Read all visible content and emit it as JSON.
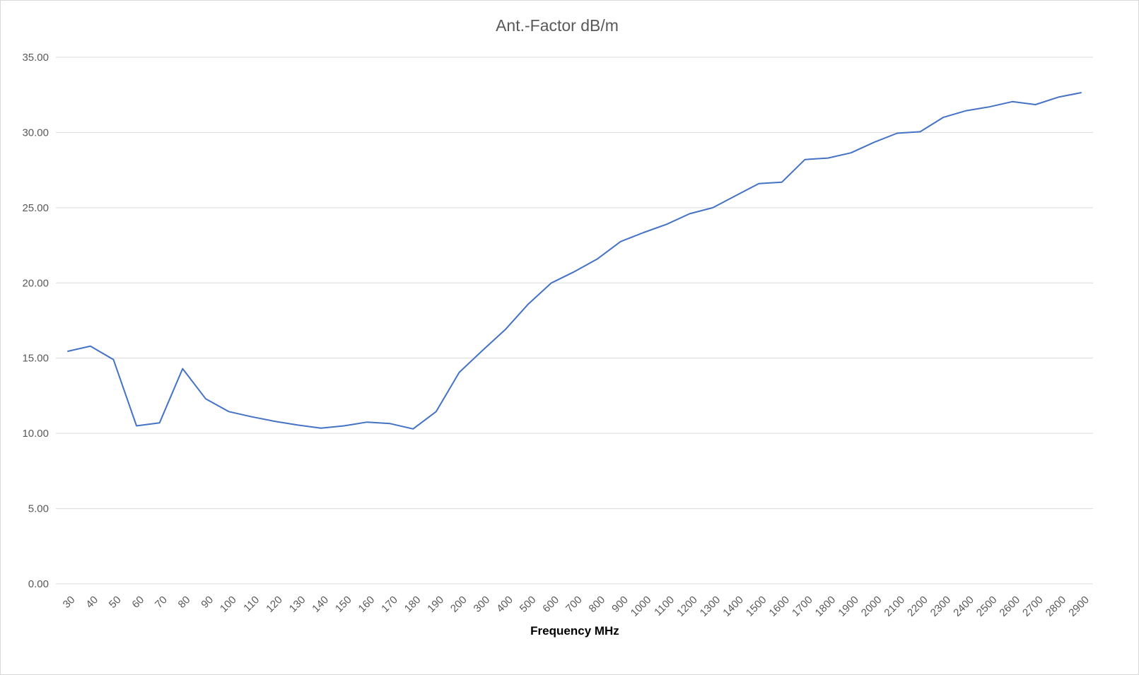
{
  "chart_data": {
    "type": "line",
    "title": "Ant.-Factor dB/m",
    "xlabel": "Frequency MHz",
    "ylabel": "",
    "ylim": [
      0,
      35
    ],
    "yticks": [
      "0.00",
      "5.00",
      "10.00",
      "15.00",
      "20.00",
      "25.00",
      "30.00",
      "35.00"
    ],
    "grid": true,
    "categories": [
      "30",
      "40",
      "50",
      "60",
      "70",
      "80",
      "90",
      "100",
      "110",
      "120",
      "130",
      "140",
      "150",
      "160",
      "170",
      "180",
      "190",
      "200",
      "300",
      "400",
      "500",
      "600",
      "700",
      "800",
      "900",
      "1000",
      "1100",
      "1200",
      "1300",
      "1400",
      "1500",
      "1600",
      "1700",
      "1800",
      "1900",
      "2000",
      "2100",
      "2200",
      "2300",
      "2400",
      "2500",
      "2600",
      "2700",
      "2800",
      "2900"
    ],
    "series": [
      {
        "color": "#4472c4",
        "values": [
          15.45,
          15.8,
          14.9,
          10.5,
          10.7,
          14.3,
          12.3,
          11.45,
          11.1,
          10.8,
          10.55,
          10.35,
          10.5,
          10.75,
          10.65,
          10.3,
          11.45,
          14.05,
          15.5,
          16.9,
          18.6,
          20.0,
          20.75,
          21.6,
          22.75,
          23.35,
          23.9,
          24.6,
          25.0,
          25.8,
          26.6,
          26.7,
          28.2,
          28.3,
          28.65,
          29.35,
          29.95,
          30.05,
          31.0,
          31.45,
          31.7,
          32.05,
          31.85,
          32.35,
          32.65
        ]
      }
    ]
  }
}
